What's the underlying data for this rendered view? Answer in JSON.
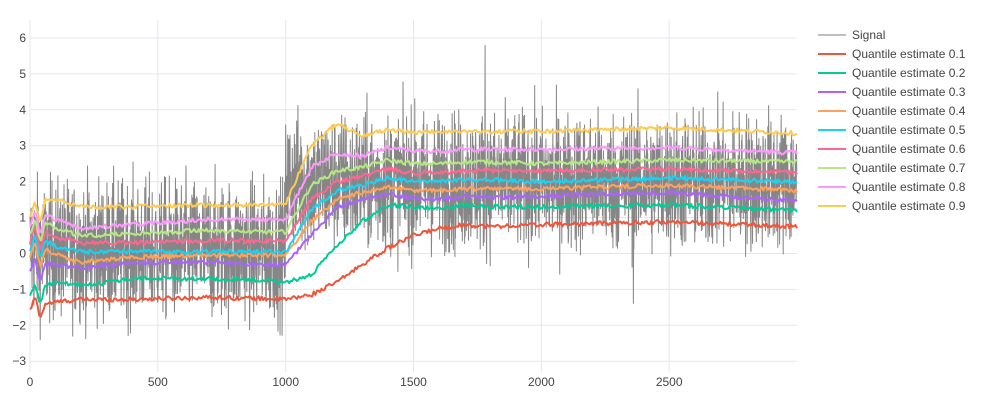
{
  "chart_data": {
    "type": "line",
    "title": "",
    "xlabel": "",
    "ylabel": "",
    "xlim": [
      0,
      3000
    ],
    "ylim": [
      -3.3,
      6.5
    ],
    "x_ticks": [
      0,
      500,
      1000,
      1500,
      2000,
      2500
    ],
    "y_ticks": [
      -3,
      -2,
      -1,
      0,
      1,
      2,
      3,
      4,
      5,
      6
    ],
    "grid": true,
    "legend_position": "right",
    "signal": {
      "name": "Signal",
      "color": "#7f7f7f",
      "n_points": 3000,
      "segments": [
        {
          "x_start": 0,
          "x_end": 1000,
          "mean": 0.1,
          "spread": 1.0
        },
        {
          "x_start": 1000,
          "x_end": 3000,
          "mean": 2.0,
          "spread": 1.0
        }
      ],
      "peak": {
        "x": 1780,
        "y": 5.8
      },
      "trough": {
        "x": 2360,
        "y": -1.4
      }
    },
    "series": [
      {
        "name": "Quantile estimate 0.1",
        "color": "#ef553b",
        "x": [
          0,
          20,
          40,
          60,
          100,
          200,
          400,
          700,
          900,
          1000,
          1100,
          1200,
          1300,
          1400,
          1500,
          1600,
          1700,
          1800,
          2000,
          2500,
          3000
        ],
        "y": [
          -1.6,
          -1.2,
          -1.8,
          -1.4,
          -1.35,
          -1.28,
          -1.28,
          -1.22,
          -1.25,
          -1.28,
          -1.15,
          -0.8,
          -0.3,
          0.15,
          0.5,
          0.7,
          0.8,
          0.75,
          0.8,
          0.88,
          0.75
        ]
      },
      {
        "name": "Quantile estimate 0.2",
        "color": "#00cc96",
        "x": [
          0,
          20,
          40,
          60,
          100,
          200,
          400,
          700,
          900,
          1000,
          1100,
          1200,
          1300,
          1400,
          1500,
          1600,
          1700,
          1800,
          2000,
          2500,
          3000
        ],
        "y": [
          -1.2,
          -0.85,
          -1.4,
          -0.9,
          -0.8,
          -0.9,
          -0.7,
          -0.7,
          -0.75,
          -0.8,
          -0.6,
          0.2,
          0.9,
          1.35,
          1.3,
          1.25,
          1.35,
          1.3,
          1.3,
          1.35,
          1.2
        ]
      },
      {
        "name": "Quantile estimate 0.3",
        "color": "#ab63fa",
        "x": [
          0,
          20,
          40,
          60,
          100,
          200,
          400,
          700,
          900,
          1000,
          1100,
          1200,
          1300,
          1400,
          1500,
          1600,
          1700,
          1800,
          2000,
          2500,
          3000
        ],
        "y": [
          -0.5,
          -0.1,
          -0.8,
          -0.3,
          -0.3,
          -0.4,
          -0.25,
          -0.25,
          -0.3,
          -0.3,
          0.5,
          1.3,
          1.5,
          1.65,
          1.55,
          1.5,
          1.6,
          1.55,
          1.6,
          1.7,
          1.45
        ]
      },
      {
        "name": "Quantile estimate 0.4",
        "color": "#ffa15a",
        "x": [
          0,
          20,
          40,
          60,
          100,
          200,
          400,
          700,
          900,
          1000,
          1100,
          1200,
          1300,
          1400,
          1500,
          1600,
          1700,
          1800,
          2000,
          2500,
          3000
        ],
        "y": [
          -0.1,
          0.3,
          -0.4,
          0.1,
          0.0,
          -0.25,
          -0.1,
          -0.05,
          -0.05,
          -0.05,
          0.9,
          1.5,
          1.7,
          1.85,
          1.75,
          1.75,
          1.8,
          1.8,
          1.8,
          1.9,
          1.75
        ]
      },
      {
        "name": "Quantile estimate 0.5",
        "color": "#19d3f3",
        "x": [
          0,
          20,
          40,
          60,
          100,
          200,
          400,
          700,
          900,
          1000,
          1100,
          1200,
          1300,
          1400,
          1500,
          1600,
          1700,
          1800,
          2000,
          2500,
          3000
        ],
        "y": [
          0.1,
          0.5,
          -0.1,
          0.35,
          0.2,
          0.05,
          0.05,
          0.05,
          0.05,
          0.05,
          1.2,
          1.75,
          1.9,
          2.1,
          2.0,
          2.0,
          2.05,
          2.05,
          2.0,
          2.1,
          2.0
        ]
      },
      {
        "name": "Quantile estimate 0.6",
        "color": "#ff6692",
        "x": [
          0,
          20,
          40,
          60,
          100,
          200,
          400,
          700,
          900,
          1000,
          1100,
          1200,
          1300,
          1400,
          1500,
          1600,
          1700,
          1800,
          2000,
          2500,
          3000
        ],
        "y": [
          0.3,
          0.8,
          0.1,
          0.6,
          0.45,
          0.3,
          0.3,
          0.35,
          0.35,
          0.35,
          1.5,
          2.0,
          2.15,
          2.35,
          2.25,
          2.25,
          2.3,
          2.3,
          2.3,
          2.35,
          2.25
        ]
      },
      {
        "name": "Quantile estimate 0.7",
        "color": "#b6e880",
        "x": [
          0,
          20,
          40,
          60,
          100,
          200,
          400,
          700,
          900,
          1000,
          1100,
          1200,
          1300,
          1400,
          1500,
          1600,
          1700,
          1800,
          2000,
          2500,
          3000
        ],
        "y": [
          0.5,
          1.0,
          0.3,
          0.85,
          0.7,
          0.5,
          0.55,
          0.65,
          0.6,
          0.6,
          1.9,
          2.3,
          2.4,
          2.6,
          2.5,
          2.5,
          2.55,
          2.55,
          2.5,
          2.6,
          2.55
        ]
      },
      {
        "name": "Quantile estimate 0.8",
        "color": "#ff97ff",
        "x": [
          0,
          20,
          40,
          60,
          100,
          200,
          400,
          700,
          900,
          1000,
          1100,
          1200,
          1300,
          1400,
          1500,
          1600,
          1700,
          1800,
          2000,
          2500,
          3000
        ],
        "y": [
          0.7,
          1.2,
          0.5,
          1.1,
          0.95,
          0.7,
          0.8,
          0.95,
          0.95,
          0.95,
          2.4,
          2.8,
          2.7,
          2.95,
          2.85,
          2.85,
          2.9,
          2.9,
          2.9,
          2.95,
          2.8
        ]
      },
      {
        "name": "Quantile estimate 0.9",
        "color": "#fecb52",
        "x": [
          0,
          20,
          40,
          60,
          100,
          200,
          400,
          700,
          900,
          1000,
          1100,
          1200,
          1300,
          1400,
          1500,
          1600,
          1700,
          1800,
          2000,
          2500,
          3000
        ],
        "y": [
          1.0,
          1.5,
          0.8,
          1.5,
          1.5,
          1.3,
          1.3,
          1.35,
          1.35,
          1.4,
          3.0,
          3.6,
          3.3,
          3.45,
          3.35,
          3.4,
          3.4,
          3.4,
          3.4,
          3.5,
          3.35
        ]
      }
    ]
  }
}
